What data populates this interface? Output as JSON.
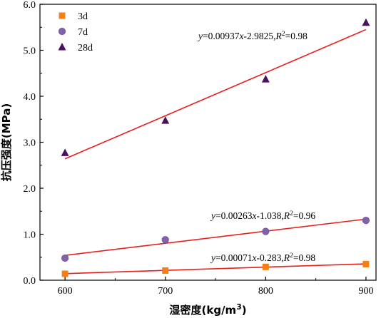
{
  "chart_data": {
    "type": "scatter",
    "xlabel": "湿密度(kg/m³)",
    "ylabel": "抗压强度(MPa)",
    "xlim": [
      575,
      910
    ],
    "ylim": [
      0,
      6.0
    ],
    "xticks": [
      "600",
      "700",
      "800",
      "900"
    ],
    "yticks": [
      "0.0",
      "1.0",
      "2.0",
      "3.0",
      "4.0",
      "5.0",
      "6.0"
    ],
    "grid": false,
    "legend_position": "top-left",
    "series": [
      {
        "name": "3d",
        "marker": "square",
        "color": "#F57F17",
        "points": [
          [
            600,
            0.14
          ],
          [
            700,
            0.21
          ],
          [
            800,
            0.29
          ],
          [
            900,
            0.35
          ]
        ],
        "fit": {
          "slope": 0.00071,
          "intercept": -0.283,
          "label": "y=0.00071x-0.283,R²=0.98"
        }
      },
      {
        "name": "7d",
        "marker": "circle",
        "color": "#8062A8",
        "points": [
          [
            600,
            0.48
          ],
          [
            700,
            0.88
          ],
          [
            800,
            1.06
          ],
          [
            900,
            1.3
          ]
        ],
        "fit": {
          "slope": 0.00263,
          "intercept": -1.038,
          "label": "y=0.00263x-1.038,R²=0.96"
        }
      },
      {
        "name": "28d",
        "marker": "triangle",
        "color": "#4B1060",
        "points": [
          [
            600,
            2.77
          ],
          [
            700,
            3.47
          ],
          [
            800,
            4.37
          ],
          [
            900,
            5.6
          ]
        ],
        "fit": {
          "slope": 0.00937,
          "intercept": -2.9825,
          "label": "y=0.00937x-2.9825,R²=0.98"
        }
      }
    ],
    "fit_line_color": "#E8201C"
  }
}
